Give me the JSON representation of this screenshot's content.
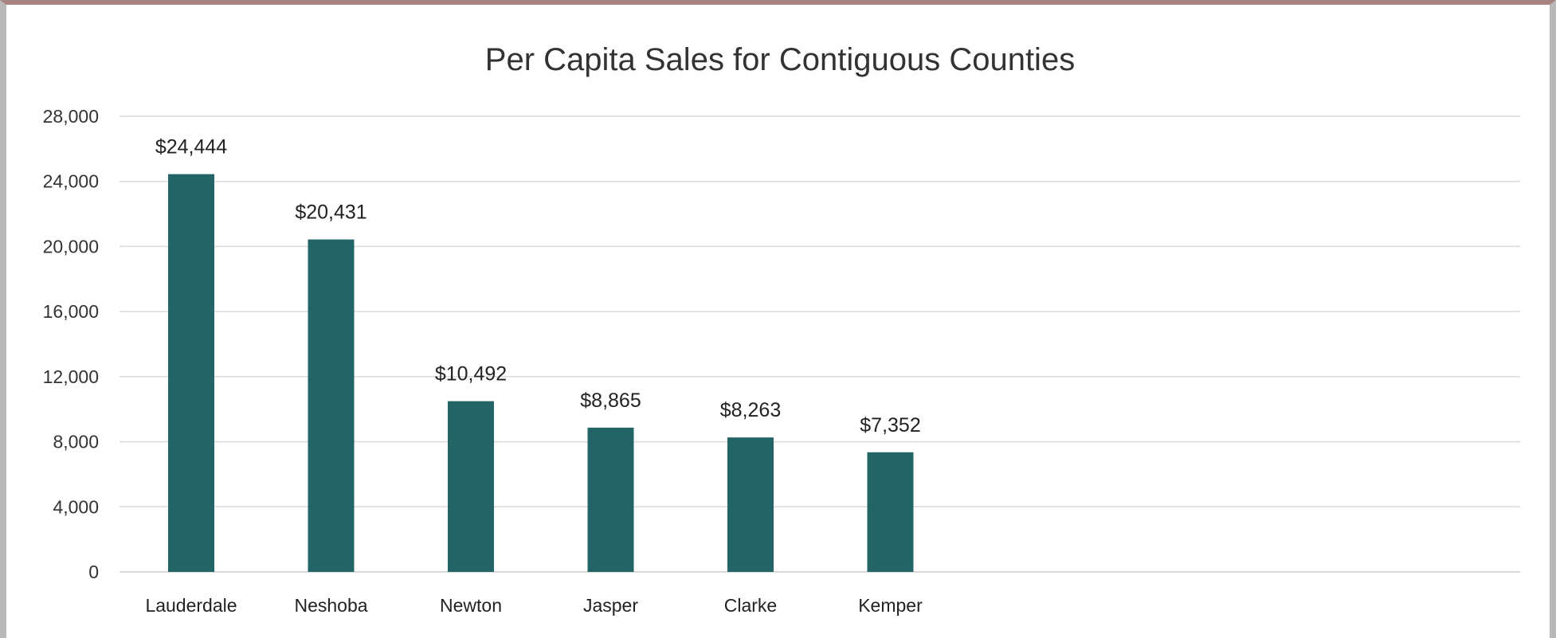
{
  "chart_data": {
    "type": "bar",
    "title": "Per Capita Sales for Contiguous Counties",
    "xlabel": "",
    "ylabel": "",
    "categories": [
      "Lauderdale",
      "Neshoba",
      "Newton",
      "Jasper",
      "Clarke",
      "Kemper"
    ],
    "values": [
      24444,
      20431,
      10492,
      8865,
      8263,
      7352
    ],
    "data_labels": [
      "$24,444",
      "$20,431",
      "$10,492",
      "$8,865",
      "$8,263",
      "$7,352"
    ],
    "ylim": [
      0,
      28000
    ],
    "yticks": [
      0,
      4000,
      8000,
      12000,
      16000,
      20000,
      24000,
      28000
    ],
    "ytick_labels": [
      "0",
      "4,000",
      "8,000",
      "12,000",
      "16,000",
      "20,000",
      "24,000",
      "28,000"
    ],
    "grid": true,
    "legend": "none",
    "bar_color": "#236467"
  }
}
